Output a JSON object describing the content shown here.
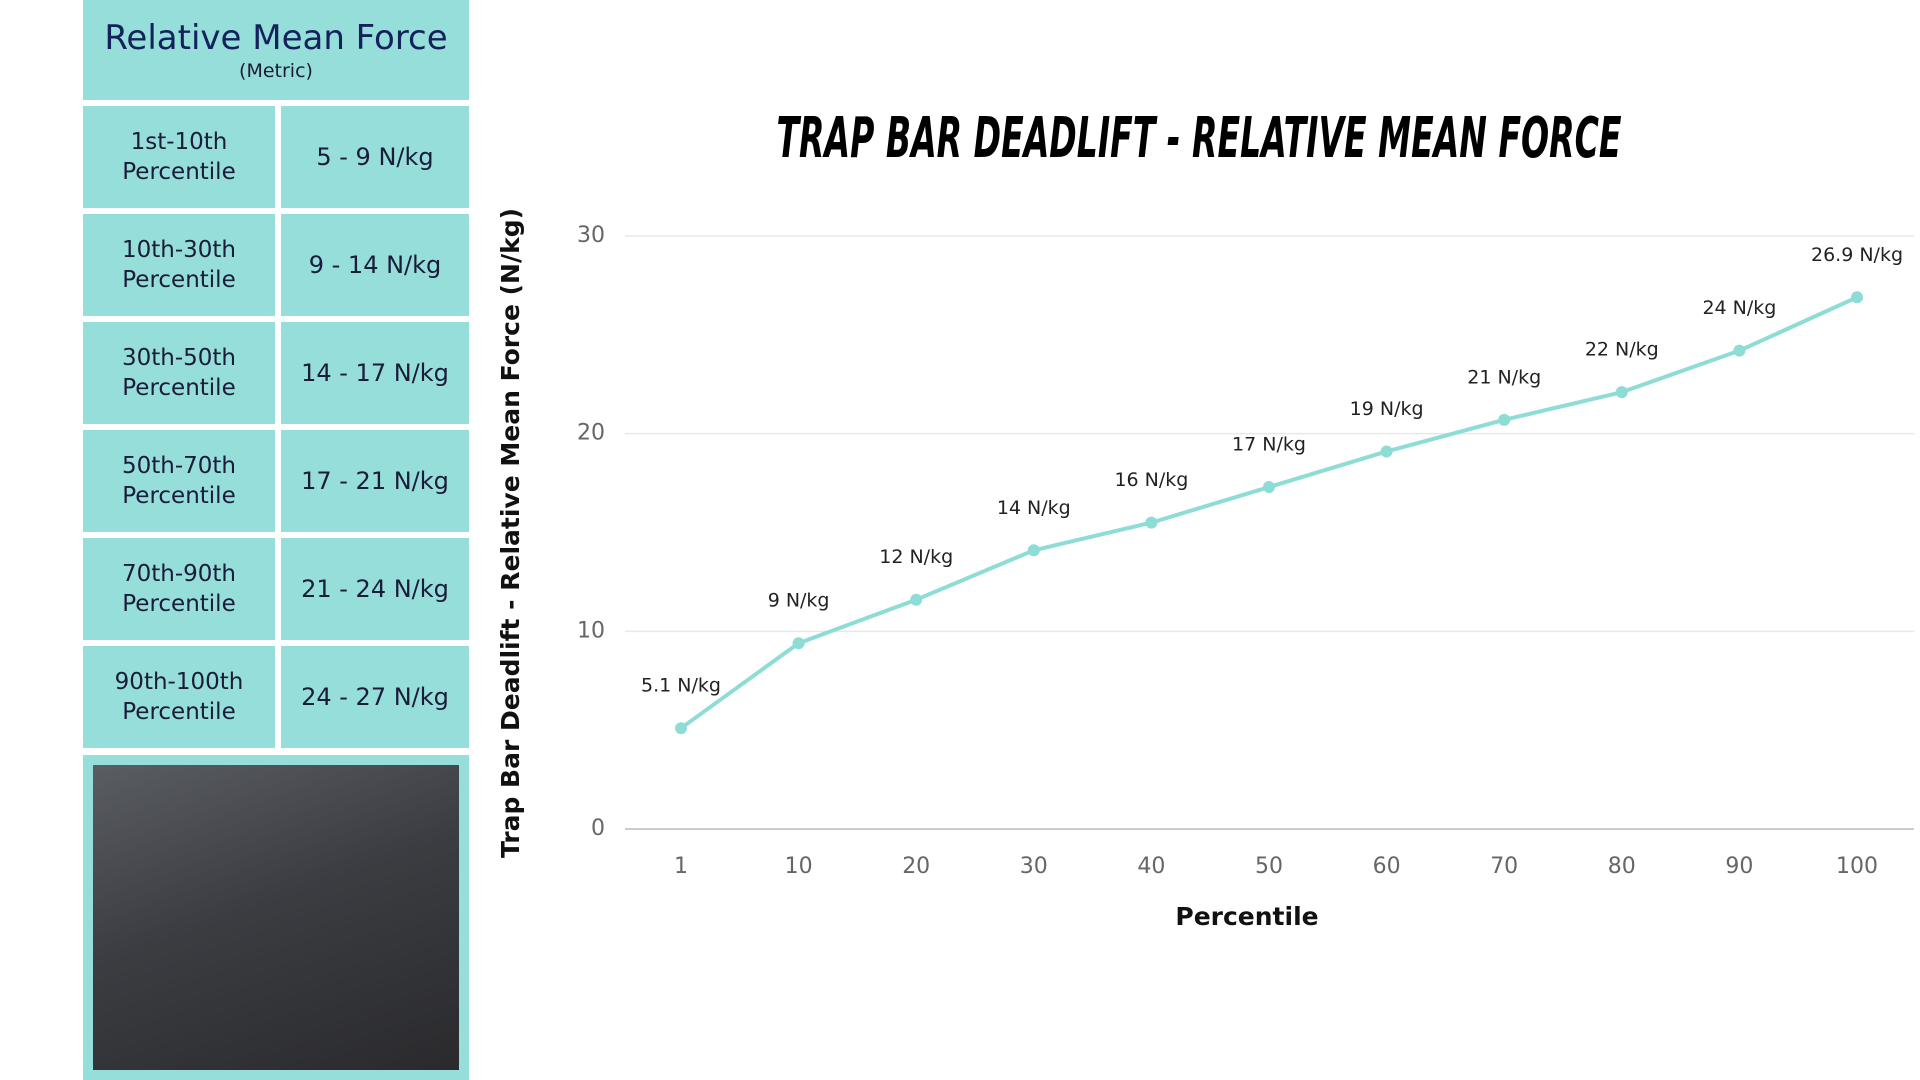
{
  "table": {
    "title": "Relative Mean Force",
    "subtitle": "(Metric)",
    "rows": [
      [
        "1st-10th Percentile",
        "5 - 9 N/kg"
      ],
      [
        "10th-30th Percentile",
        "9 - 14 N/kg"
      ],
      [
        "30th-50th Percentile",
        "14 - 17 N/kg"
      ],
      [
        "50th-70th Percentile",
        "17 - 21 N/kg"
      ],
      [
        "70th-90th Percentile",
        "21 - 24 N/kg"
      ],
      [
        "90th-100th Percentile",
        "24 - 27 N/kg"
      ]
    ]
  },
  "chart_data": {
    "type": "line",
    "title": "TRAP BAR DEADLIFT - RELATIVE MEAN FORCE",
    "x_label": "Percentile",
    "y_label": "Trap Bar Deadlift - Relative Mean Force (N/kg)",
    "categories": [
      "1",
      "10",
      "20",
      "30",
      "40",
      "50",
      "60",
      "70",
      "80",
      "90",
      "100"
    ],
    "series": [
      {
        "name": "Relative Mean Force",
        "color": "#8edcd6",
        "values": [
          5.1,
          9.4,
          11.6,
          14.1,
          15.5,
          17.3,
          19.1,
          20.7,
          22.1,
          24.2,
          26.9
        ],
        "value_labels": [
          "5.1 N/kg",
          "9 N/kg",
          "12 N/kg",
          "14 N/kg",
          "16 N/kg",
          "17 N/kg",
          "19 N/kg",
          "21 N/kg",
          "22 N/kg",
          "24 N/kg",
          "26.9 N/kg"
        ]
      }
    ],
    "ylim": [
      0,
      30
    ],
    "yticks": [
      0,
      10,
      20,
      30
    ],
    "grid": true
  }
}
